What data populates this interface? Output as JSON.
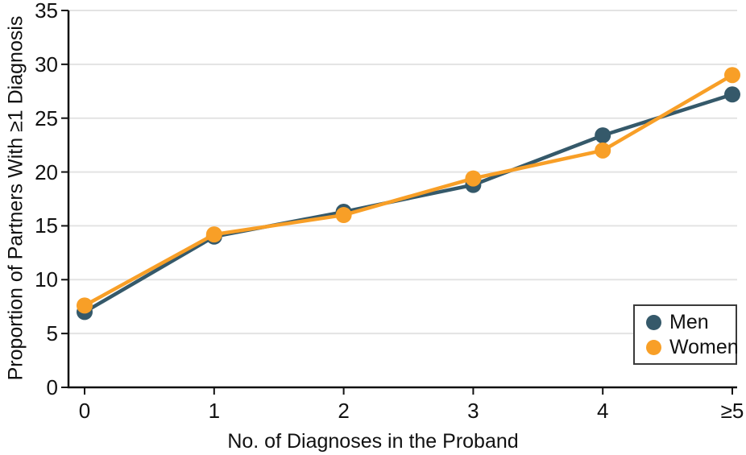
{
  "chart_data": {
    "type": "line",
    "xlabel": "No. of Diagnoses in the Proband",
    "ylabel": "Proportion of Partners With ≥1 Diagnosis",
    "categories": [
      "0",
      "1",
      "2",
      "3",
      "4",
      "≥5"
    ],
    "series": [
      {
        "name": "Men",
        "color": "#35596a",
        "values": [
          7.0,
          14.0,
          16.3,
          18.8,
          23.4,
          27.2
        ]
      },
      {
        "name": "Women",
        "color": "#f89f27",
        "values": [
          7.6,
          14.2,
          16.0,
          19.4,
          22.0,
          29.0
        ]
      }
    ],
    "ylim": [
      0,
      35
    ],
    "yticks": [
      0,
      5,
      10,
      15,
      20,
      25,
      30,
      35
    ],
    "grid": "horizontal",
    "legend_position": "bottom-right"
  },
  "colors": {
    "axis": "#111111",
    "gridline": "#e3e3e3",
    "background": "#ffffff"
  }
}
